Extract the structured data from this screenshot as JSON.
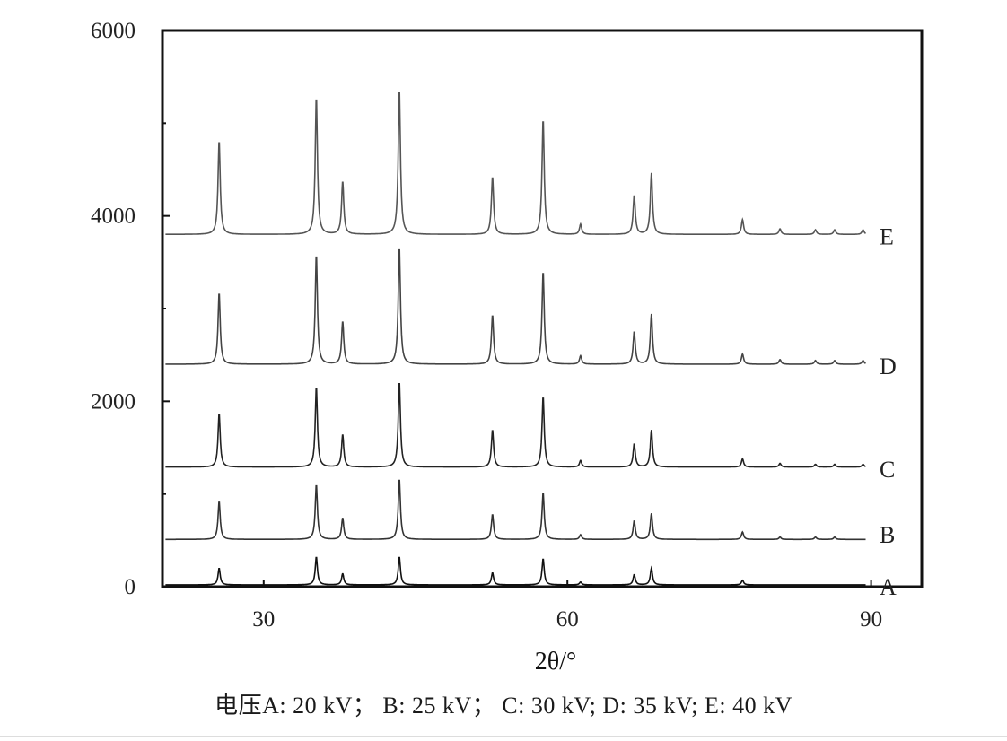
{
  "chart_data": {
    "type": "line",
    "xlabel": "2θ/°",
    "ylabel": "",
    "xlim": [
      20,
      95
    ],
    "ylim": [
      0,
      6000
    ],
    "xticks": [
      30,
      60,
      90
    ],
    "yticks": [
      0,
      2000,
      4000,
      6000
    ],
    "minor_yticks": [
      1000,
      3000,
      5000
    ],
    "grid": false,
    "legend": "none",
    "caption": "电压A: 20 kV； B: 25 kV； C: 30 kV; D: 35 kV; E: 40 kV",
    "x_end": 89.5,
    "series": [
      {
        "name": "A",
        "baseline": 20,
        "label_y": 0,
        "peaks": [
          [
            25.6,
            180
          ],
          [
            35.2,
            300
          ],
          [
            37.8,
            120
          ],
          [
            43.4,
            300
          ],
          [
            52.6,
            130
          ],
          [
            57.6,
            280
          ],
          [
            61.3,
            30
          ],
          [
            66.6,
            110
          ],
          [
            68.3,
            180
          ],
          [
            77.3,
            50
          ]
        ]
      },
      {
        "name": "B",
        "baseline": 510,
        "label_y": 560,
        "peaks": [
          [
            25.6,
            410
          ],
          [
            35.2,
            590
          ],
          [
            37.8,
            230
          ],
          [
            43.4,
            650
          ],
          [
            52.6,
            270
          ],
          [
            57.6,
            500
          ],
          [
            61.3,
            50
          ],
          [
            66.6,
            200
          ],
          [
            68.3,
            280
          ],
          [
            77.3,
            80
          ],
          [
            81.0,
            25
          ],
          [
            84.5,
            25
          ],
          [
            86.4,
            25
          ]
        ]
      },
      {
        "name": "C",
        "baseline": 1290,
        "label_y": 1270,
        "peaks": [
          [
            25.6,
            580
          ],
          [
            35.2,
            860
          ],
          [
            37.8,
            350
          ],
          [
            43.4,
            920
          ],
          [
            52.6,
            400
          ],
          [
            57.6,
            760
          ],
          [
            61.3,
            70
          ],
          [
            66.6,
            250
          ],
          [
            68.3,
            400
          ],
          [
            77.3,
            90
          ],
          [
            81.0,
            40
          ],
          [
            84.5,
            30
          ],
          [
            86.4,
            30
          ],
          [
            89.2,
            30
          ]
        ]
      },
      {
        "name": "D",
        "baseline": 2400,
        "label_y": 2380,
        "peaks": [
          [
            25.6,
            770
          ],
          [
            35.2,
            1180
          ],
          [
            37.8,
            460
          ],
          [
            43.4,
            1260
          ],
          [
            52.6,
            530
          ],
          [
            57.6,
            1000
          ],
          [
            61.3,
            90
          ],
          [
            66.6,
            350
          ],
          [
            68.3,
            540
          ],
          [
            77.3,
            110
          ],
          [
            81.0,
            50
          ],
          [
            84.5,
            40
          ],
          [
            86.4,
            40
          ],
          [
            89.2,
            40
          ]
        ]
      },
      {
        "name": "E",
        "baseline": 3800,
        "label_y": 3780,
        "peaks": [
          [
            25.6,
            1010
          ],
          [
            35.2,
            1480
          ],
          [
            37.8,
            570
          ],
          [
            43.4,
            1560
          ],
          [
            52.6,
            620
          ],
          [
            57.6,
            1240
          ],
          [
            61.3,
            110
          ],
          [
            66.6,
            420
          ],
          [
            68.3,
            660
          ],
          [
            77.3,
            160
          ],
          [
            81.0,
            60
          ],
          [
            84.5,
            50
          ],
          [
            86.4,
            50
          ],
          [
            89.2,
            50
          ]
        ]
      }
    ]
  }
}
